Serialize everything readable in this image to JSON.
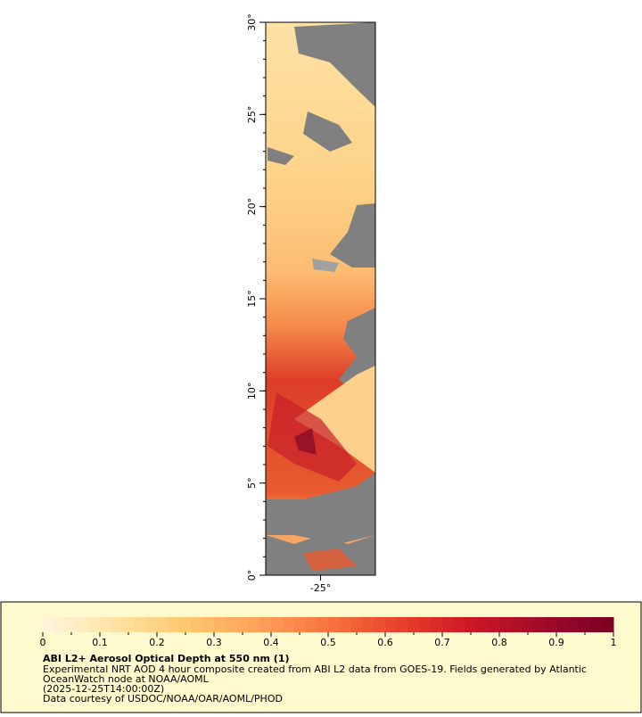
{
  "map": {
    "lat_ticks": [
      {
        "value": 0,
        "label": "0°"
      },
      {
        "value": 5,
        "label": "5°"
      },
      {
        "value": 10,
        "label": "10°"
      },
      {
        "value": 15,
        "label": "15°"
      },
      {
        "value": 20,
        "label": "20°"
      },
      {
        "value": 25,
        "label": "25°"
      },
      {
        "value": 30,
        "label": "30°"
      }
    ],
    "ylim": [
      0,
      30
    ],
    "lon_ticks": [
      {
        "value": -25,
        "label": "-25°"
      }
    ],
    "xlim": [
      -28,
      -22
    ]
  },
  "legend": {
    "ticks": [
      0,
      0.1,
      0.2,
      0.3,
      0.4,
      0.5,
      0.6,
      0.7,
      0.8,
      0.9,
      1
    ],
    "range": [
      0,
      1
    ],
    "colors": [
      "#fff6de",
      "#fee3a4",
      "#fdc86e",
      "#fda15a",
      "#f8743f",
      "#e8412b",
      "#cd1824",
      "#a00a2a",
      "#7a0022"
    ],
    "title": "ABI L2+ Aerosol Optical Depth at 550 nm (1)",
    "lines": [
      "Experimental NRT AOD 4 hour composite created from ABI L2 data from GOES-19. Fields generated by Atlantic",
      "OceanWatch node at NOAA/AOML",
      "(2025-12-25T14:00:00Z)",
      "Data courtesy of USDOC/NOAA/OAR/AOML/PHOD"
    ]
  }
}
